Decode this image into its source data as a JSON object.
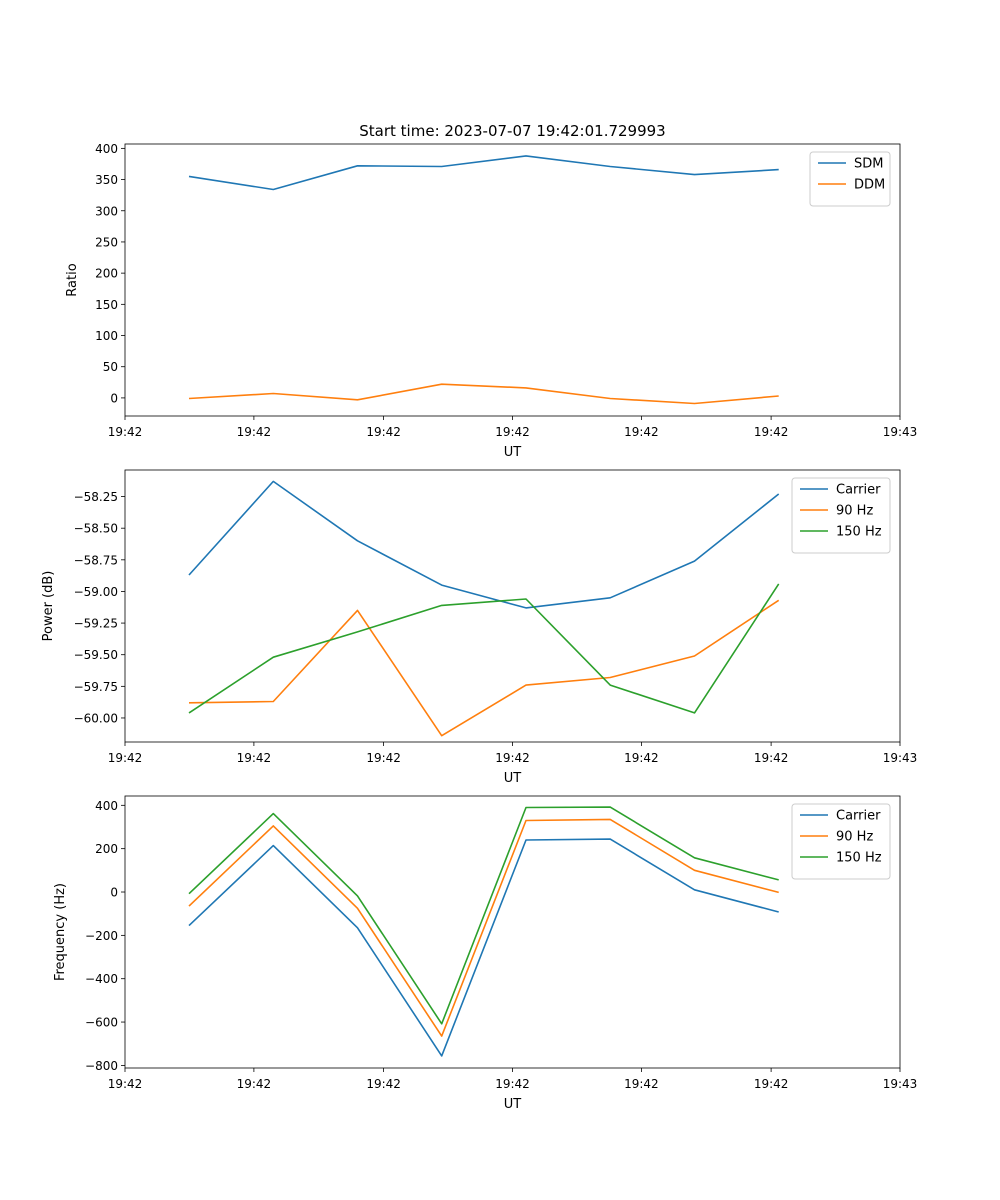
{
  "figure": {
    "title": "Start time: 2023-07-07 19:42:01.729993"
  },
  "colors": {
    "series1": "#1f77b4",
    "series2": "#ff7f0e",
    "series3": "#2ca02c"
  },
  "chart_data": [
    {
      "type": "line",
      "title": "Start time: 2023-07-07 19:42:01.729993",
      "xlabel": "UT",
      "ylabel": "Ratio",
      "xlim": [
        0,
        9.2
      ],
      "ylim": [
        -29,
        407
      ],
      "xticks": [
        0.0,
        1.53,
        3.07,
        4.6,
        6.13,
        7.67,
        9.2
      ],
      "xtick_labels": [
        "19:42",
        "19:42",
        "19:42",
        "19:42",
        "19:42",
        "19:42",
        "19:43"
      ],
      "yticks": [
        0,
        50,
        100,
        150,
        200,
        250,
        300,
        350,
        400
      ],
      "ytick_labels": [
        "0",
        "50",
        "100",
        "150",
        "200",
        "250",
        "300",
        "350",
        "400"
      ],
      "legend_position": "top-right",
      "x": [
        0.76,
        1.76,
        2.76,
        3.76,
        4.76,
        5.76,
        6.76,
        7.76
      ],
      "series": [
        {
          "name": "SDM",
          "color": "#1f77b4",
          "values": [
            355,
            334,
            372,
            371,
            388,
            371,
            358,
            366
          ]
        },
        {
          "name": "DDM",
          "color": "#ff7f0e",
          "values": [
            -1,
            7,
            -3,
            22,
            16,
            -1,
            -9,
            3
          ]
        }
      ]
    },
    {
      "type": "line",
      "title": "",
      "xlabel": "UT",
      "ylabel": "Power (dB)",
      "xlim": [
        0,
        9.2
      ],
      "ylim": [
        -60.19,
        -58.04
      ],
      "xticks": [
        0.0,
        1.53,
        3.07,
        4.6,
        6.13,
        7.67,
        9.2
      ],
      "xtick_labels": [
        "19:42",
        "19:42",
        "19:42",
        "19:42",
        "19:42",
        "19:42",
        "19:43"
      ],
      "yticks": [
        -60.0,
        -59.75,
        -59.5,
        -59.25,
        -59.0,
        -58.75,
        -58.5,
        -58.25
      ],
      "ytick_labels": [
        "−60.00",
        "−59.75",
        "−59.50",
        "−59.25",
        "−59.00",
        "−58.75",
        "−58.50",
        "−58.25"
      ],
      "legend_position": "top-right",
      "x": [
        0.76,
        1.76,
        2.76,
        3.76,
        4.76,
        5.76,
        6.76,
        7.76
      ],
      "series": [
        {
          "name": "Carrier",
          "color": "#1f77b4",
          "values": [
            -58.87,
            -58.13,
            -58.6,
            -58.95,
            -59.13,
            -59.05,
            -58.76,
            -58.23
          ]
        },
        {
          "name": "90 Hz",
          "color": "#ff7f0e",
          "values": [
            -59.88,
            -59.87,
            -59.15,
            -60.14,
            -59.74,
            -59.68,
            -59.51,
            -59.07
          ]
        },
        {
          "name": "150 Hz",
          "color": "#2ca02c",
          "values": [
            -59.96,
            -59.52,
            -59.32,
            -59.11,
            -59.06,
            -59.74,
            -59.96,
            -58.94
          ]
        }
      ]
    },
    {
      "type": "line",
      "title": "",
      "xlabel": "UT",
      "ylabel": "Frequency (Hz)",
      "xlim": [
        0,
        9.2
      ],
      "ylim": [
        -812,
        443
      ],
      "xticks": [
        0.0,
        1.53,
        3.07,
        4.6,
        6.13,
        7.67,
        9.2
      ],
      "xtick_labels": [
        "19:42",
        "19:42",
        "19:42",
        "19:42",
        "19:42",
        "19:42",
        "19:43"
      ],
      "yticks": [
        -800,
        -600,
        -400,
        -200,
        0,
        200,
        400
      ],
      "ytick_labels": [
        "−800",
        "−600",
        "−400",
        "−200",
        "0",
        "200",
        "400"
      ],
      "legend_position": "top-right",
      "x": [
        0.76,
        1.76,
        2.76,
        3.76,
        4.76,
        5.76,
        6.76,
        7.76
      ],
      "series": [
        {
          "name": "Carrier",
          "color": "#1f77b4",
          "values": [
            -155,
            214,
            -165,
            -756,
            240,
            244,
            10,
            -92
          ]
        },
        {
          "name": "90 Hz",
          "color": "#ff7f0e",
          "values": [
            -65,
            305,
            -75,
            -665,
            330,
            335,
            100,
            -2
          ]
        },
        {
          "name": "150 Hz",
          "color": "#2ca02c",
          "values": [
            -8,
            362,
            -18,
            -608,
            390,
            392,
            158,
            56
          ]
        }
      ]
    }
  ]
}
